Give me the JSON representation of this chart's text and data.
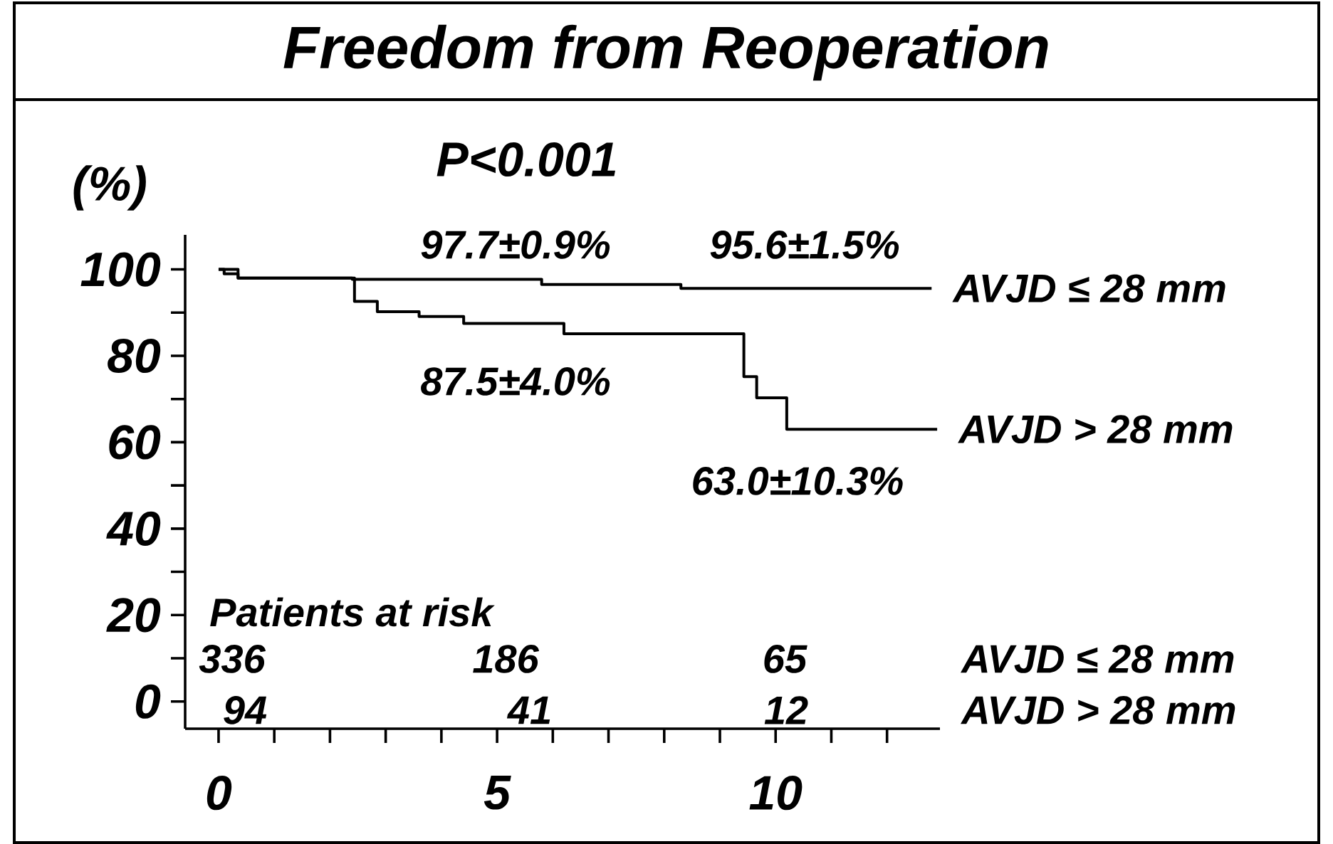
{
  "chart_data": {
    "type": "step",
    "title": "Freedom from Reoperation",
    "ylabel": "(%)",
    "xlim": [
      -0.6,
      12.95
    ],
    "ylim": [
      -6.3,
      108
    ],
    "xticks": [
      0,
      {
        "value": 1,
        "label": null
      },
      {
        "value": 2,
        "label": null
      },
      {
        "value": 3,
        "label": null
      },
      {
        "value": 4,
        "label": null
      },
      5,
      {
        "value": 6,
        "label": null
      },
      {
        "value": 7,
        "label": null
      },
      {
        "value": 8,
        "label": null
      },
      {
        "value": 9,
        "label": null
      },
      10,
      {
        "value": 11,
        "label": null
      },
      {
        "value": 12,
        "label": null
      }
    ],
    "yticks": [
      0,
      {
        "value": 10,
        "label": null
      },
      20,
      {
        "value": 30,
        "label": null
      },
      40,
      {
        "value": 50,
        "label": null
      },
      60,
      {
        "value": 70,
        "label": null
      },
      80,
      {
        "value": 90,
        "label": null
      },
      100
    ],
    "series": [
      {
        "name": "AVJD ≤ 28 mm",
        "color": "#000000",
        "x": [
          0,
          0.1,
          0.35,
          2.4,
          5.8,
          8.3,
          12.8
        ],
        "values": [
          100,
          99,
          98,
          97.7,
          96.5,
          95.6,
          95.6
        ]
      },
      {
        "name": "AVJD > 28 mm",
        "color": "#000000",
        "x": [
          0,
          0.35,
          2.44,
          2.85,
          3.6,
          4.4,
          6.2,
          9.43,
          9.66,
          10.2,
          12.9
        ],
        "values": [
          100,
          98,
          92.6,
          90.2,
          89.1,
          87.5,
          85.1,
          75.2,
          70.3,
          63.0,
          63.0
        ]
      }
    ],
    "legend": false,
    "annotations": [
      "P<0.001",
      "97.7±0.9%",
      "95.6±1.5%",
      "87.5±4.0%",
      "63.0±10.3%",
      "Patients at risk",
      "336",
      "186",
      "65",
      "AVJD ≤ 28 mm",
      "94",
      "41",
      "12",
      "AVJD > 28 mm"
    ]
  }
}
